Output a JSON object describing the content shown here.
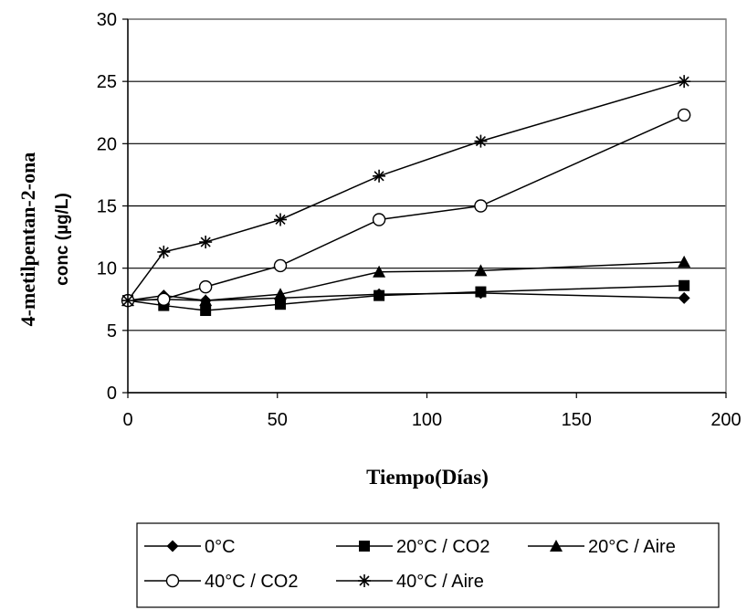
{
  "chart_data": {
    "type": "line",
    "title": "",
    "xlabel": "Tiempo(Días)",
    "ylabel_line1": "4-metilpentan-2-ona",
    "ylabel_line2": "conc (µg/L)",
    "xlim": [
      0,
      200
    ],
    "ylim": [
      0,
      30
    ],
    "xticks": [
      0,
      50,
      100,
      150,
      200
    ],
    "yticks": [
      0,
      5,
      10,
      15,
      20,
      25,
      30
    ],
    "grid": "horizontal",
    "legend_position": "bottom",
    "series": [
      {
        "name": "0°C",
        "marker": "diamond",
        "x": [
          0,
          12,
          26,
          51,
          84,
          118,
          186
        ],
        "y": [
          7.4,
          7.8,
          7.4,
          7.6,
          7.9,
          8.0,
          7.6
        ]
      },
      {
        "name": "20°C / CO2",
        "marker": "square",
        "x": [
          0,
          12,
          26,
          51,
          84,
          118,
          186
        ],
        "y": [
          7.4,
          7.0,
          6.6,
          7.1,
          7.8,
          8.1,
          8.6
        ]
      },
      {
        "name": "20°C / Aire",
        "marker": "triangle",
        "x": [
          0,
          12,
          26,
          51,
          84,
          118,
          186
        ],
        "y": [
          7.4,
          7.5,
          7.4,
          7.9,
          9.7,
          9.8,
          10.5
        ]
      },
      {
        "name": "40°C / CO2",
        "marker": "circle",
        "x": [
          0,
          12,
          26,
          51,
          84,
          118,
          186
        ],
        "y": [
          7.4,
          7.5,
          8.5,
          10.2,
          13.9,
          15.0,
          22.3
        ]
      },
      {
        "name": "40°C / Aire",
        "marker": "asterisk",
        "x": [
          0,
          12,
          26,
          51,
          84,
          118,
          186
        ],
        "y": [
          7.4,
          11.3,
          12.1,
          13.9,
          17.4,
          20.2,
          25.0
        ]
      }
    ]
  }
}
